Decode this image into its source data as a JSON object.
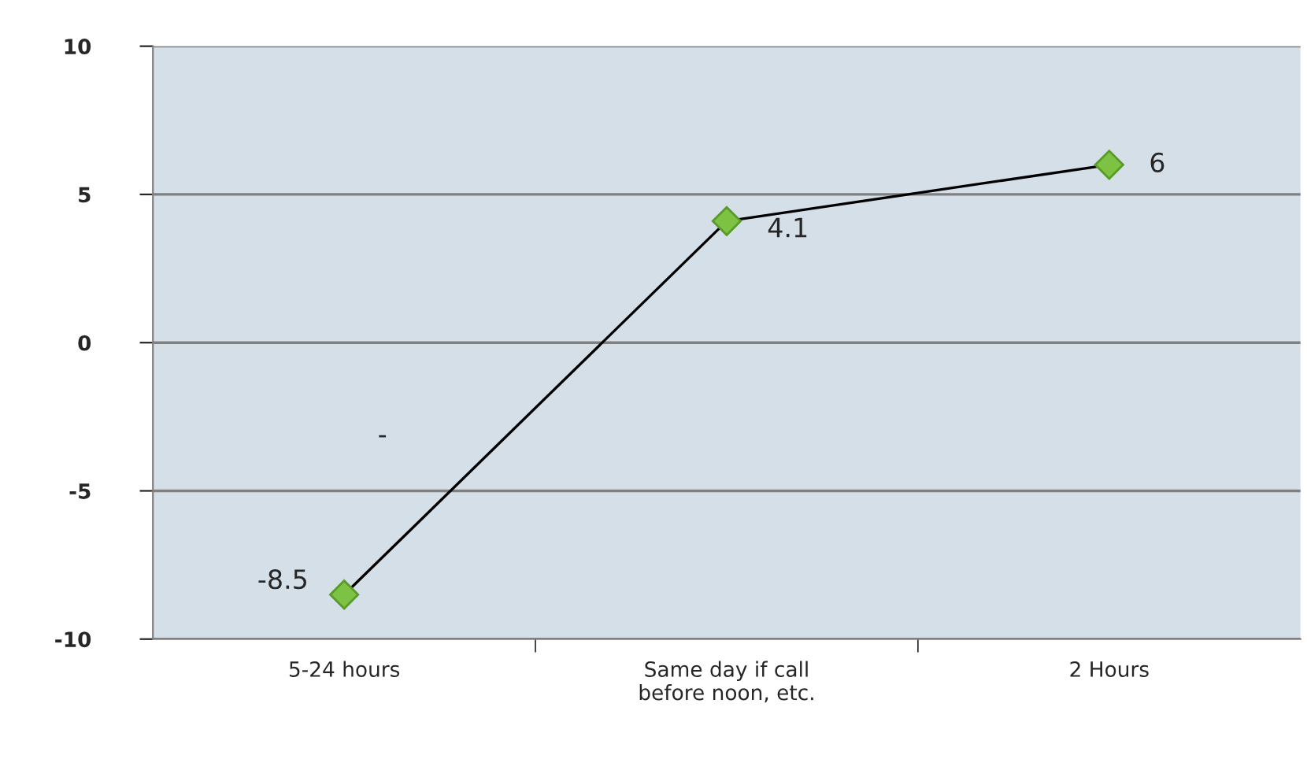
{
  "chart_data": {
    "type": "line",
    "categories": [
      "5-24 hours",
      "Same day if call\nbefore noon, etc.",
      "2 Hours"
    ],
    "series": [
      {
        "color": "#7dc242",
        "values": [
          -8.5,
          4.1,
          6
        ]
      }
    ],
    "ylim": [
      -10,
      10
    ],
    "yticks": [
      -10,
      -5,
      0,
      5,
      10
    ],
    "grid": "y",
    "marker": "diamond",
    "line_style": "solid",
    "data_labels": true,
    "legend": false,
    "annotations": [
      "-"
    ]
  }
}
